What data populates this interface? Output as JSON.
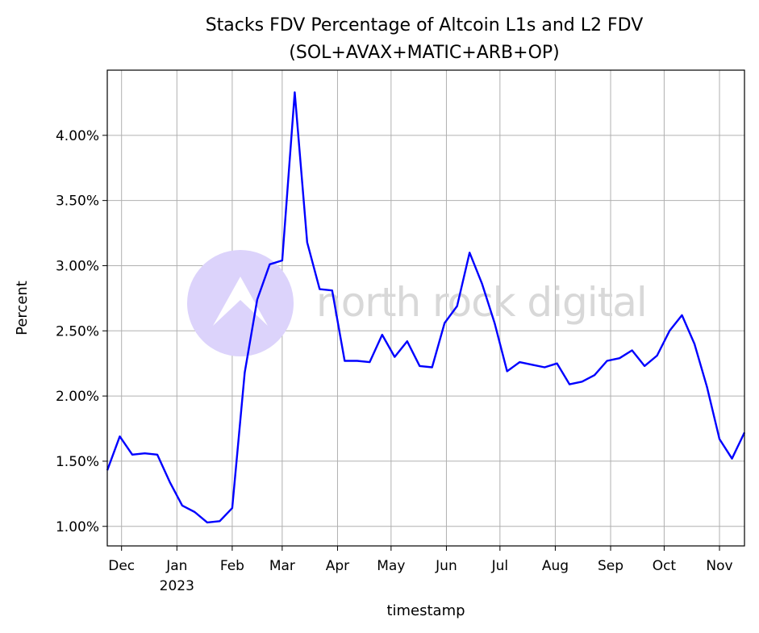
{
  "chart_data": {
    "type": "line",
    "title": "Stacks FDV Percentage of Altcoin L1s and L2 FDV",
    "subtitle": "(SOL+AVAX+MATIC+ARB+OP)",
    "xlabel": "timestamp",
    "ylabel": "Percent",
    "ylim": [
      0.85,
      4.5
    ],
    "xlim": [
      "2022-11-23",
      "2023-11-15"
    ],
    "grid": true,
    "y_ticks": [
      {
        "value": 1.0,
        "label": "1.00%"
      },
      {
        "value": 1.5,
        "label": "1.50%"
      },
      {
        "value": 2.0,
        "label": "2.00%"
      },
      {
        "value": 2.5,
        "label": "2.50%"
      },
      {
        "value": 3.0,
        "label": "3.00%"
      },
      {
        "value": 3.5,
        "label": "3.50%"
      },
      {
        "value": 4.0,
        "label": "4.00%"
      }
    ],
    "x_ticks": [
      {
        "date": "2022-12-01",
        "label": "Dec"
      },
      {
        "date": "2023-01-01",
        "label": "Jan",
        "sublabel": "2023"
      },
      {
        "date": "2023-02-01",
        "label": "Feb"
      },
      {
        "date": "2023-03-01",
        "label": "Mar"
      },
      {
        "date": "2023-04-01",
        "label": "Apr"
      },
      {
        "date": "2023-05-01",
        "label": "May"
      },
      {
        "date": "2023-06-01",
        "label": "Jun"
      },
      {
        "date": "2023-07-01",
        "label": "Jul"
      },
      {
        "date": "2023-08-01",
        "label": "Aug"
      },
      {
        "date": "2023-09-01",
        "label": "Sep"
      },
      {
        "date": "2023-10-01",
        "label": "Oct"
      },
      {
        "date": "2023-11-01",
        "label": "Nov"
      }
    ],
    "series": [
      {
        "color": "#0000ff",
        "x": [
          "2022-11-23",
          "2022-11-30",
          "2022-12-07",
          "2022-12-14",
          "2022-12-21",
          "2022-12-28",
          "2023-01-04",
          "2023-01-11",
          "2023-01-18",
          "2023-01-25",
          "2023-02-01",
          "2023-02-08",
          "2023-02-15",
          "2023-02-22",
          "2023-03-01",
          "2023-03-08",
          "2023-03-15",
          "2023-03-22",
          "2023-03-29",
          "2023-04-05",
          "2023-04-12",
          "2023-04-19",
          "2023-04-26",
          "2023-05-03",
          "2023-05-10",
          "2023-05-17",
          "2023-05-24",
          "2023-05-31",
          "2023-06-07",
          "2023-06-14",
          "2023-06-21",
          "2023-06-28",
          "2023-07-05",
          "2023-07-12",
          "2023-07-19",
          "2023-07-26",
          "2023-08-02",
          "2023-08-09",
          "2023-08-16",
          "2023-08-23",
          "2023-08-30",
          "2023-09-06",
          "2023-09-13",
          "2023-09-20",
          "2023-09-27",
          "2023-10-04",
          "2023-10-11",
          "2023-10-18",
          "2023-10-25",
          "2023-11-01",
          "2023-11-08",
          "2023-11-15"
        ],
        "values": [
          1.43,
          1.69,
          1.55,
          1.56,
          1.55,
          1.34,
          1.16,
          1.11,
          1.03,
          1.04,
          1.14,
          2.18,
          2.74,
          3.01,
          3.04,
          4.33,
          3.18,
          2.82,
          2.81,
          2.27,
          2.27,
          2.26,
          2.47,
          2.3,
          2.42,
          2.23,
          2.22,
          2.56,
          2.69,
          3.1,
          2.86,
          2.56,
          2.19,
          2.26,
          2.24,
          2.22,
          2.25,
          2.09,
          2.11,
          2.16,
          2.27,
          2.29,
          2.35,
          2.23,
          2.31,
          2.5,
          2.62,
          2.4,
          2.07,
          1.67,
          1.52,
          1.72
        ]
      }
    ]
  },
  "watermark": {
    "text": "north rock digital",
    "circle_color": "#dcd3fb"
  }
}
